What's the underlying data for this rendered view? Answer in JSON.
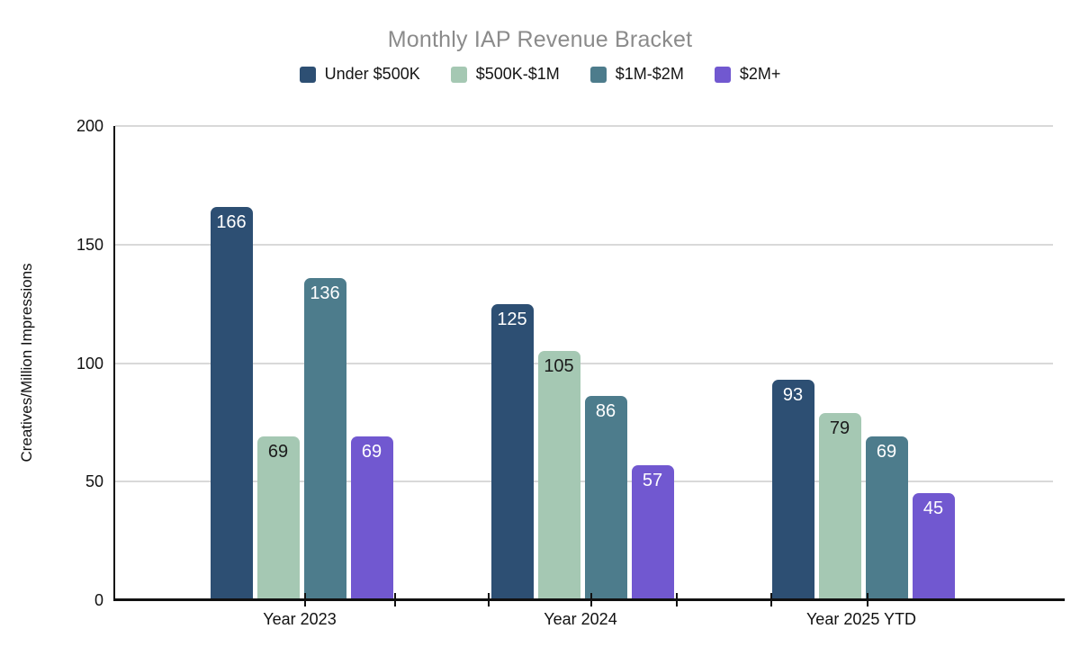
{
  "title": "Monthly IAP Revenue Bracket",
  "colors": {
    "under_500k": "#2d4f73",
    "500k_1m": "#a5c8b3",
    "1m_2m": "#4d7c8c",
    "2m_plus": "#7158d0",
    "gridline": "#d9d9d9",
    "axis": "#111111",
    "title_text": "#8b8b8b"
  },
  "chart_data": {
    "type": "bar",
    "title": "Monthly IAP Revenue Bracket",
    "categories": [
      "Year 2023",
      "Year 2024",
      "Year 2025 YTD"
    ],
    "series": [
      {
        "name": "Under $500K",
        "color": "#2d4f73",
        "label_color": "#ffffff",
        "values": [
          166,
          125,
          93
        ]
      },
      {
        "name": "$500K-$1M",
        "color": "#a5c8b3",
        "label_color": "#1b1b1b",
        "values": [
          69,
          105,
          79
        ]
      },
      {
        "name": "$1M-$2M",
        "color": "#4d7c8c",
        "label_color": "#ffffff",
        "values": [
          136,
          86,
          69
        ]
      },
      {
        "name": "$2M+",
        "color": "#7158d0",
        "label_color": "#ffffff",
        "values": [
          69,
          57,
          45
        ]
      }
    ],
    "xlabel": "",
    "ylabel": "Creatives/Million Impressions",
    "ylim": [
      0,
      200
    ],
    "yticks": [
      0,
      50,
      100,
      150,
      200
    ],
    "legend_position": "top",
    "grid": true,
    "bar_value_labels": true
  }
}
